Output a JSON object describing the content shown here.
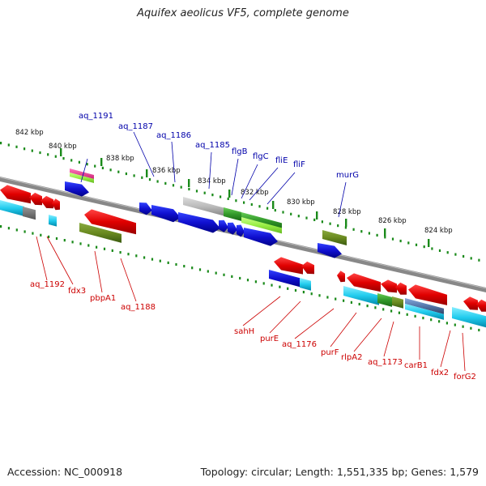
{
  "title": "Aquifex aeolicus VF5, complete genome",
  "footer": {
    "accession": "Accession: NC_000918",
    "summary": "Topology: circular; Length: 1,551,335 bp; Genes: 1,579"
  },
  "scale_labels": [
    "842 kbp",
    "840 kbp",
    "838 kbp",
    "836 kbp",
    "834 kbp",
    "832 kbp",
    "830 kbp",
    "828 kbp",
    "826 kbp",
    "824 kbp"
  ],
  "top_genes": [
    "aq_1191",
    "aq_1187",
    "aq_1186",
    "aq_1185",
    "flgB",
    "flgC",
    "fliE",
    "fliF",
    "murG"
  ],
  "bottom_genes": [
    "aq_1192",
    "fdx3",
    "pbpA1",
    "aq_1188",
    "sahH",
    "purE",
    "aq_1176",
    "purF",
    "rlpA2",
    "aq_1173",
    "carB1",
    "fdx2",
    "forG2"
  ],
  "colors": {
    "forward_strand": "#1010d0",
    "reverse_strand": "#e00000",
    "tick": "#1a8a1a",
    "top_label": "#0000aa",
    "bottom_label": "#cc0000",
    "backbone": "#888888",
    "feature_cyan": "#22ccee",
    "feature_olive": "#6a8a20",
    "feature_green": "#44aa33",
    "feature_lime": "#99ee44",
    "feature_magenta": "#ee3399",
    "feature_gray": "#bbbbbb"
  }
}
